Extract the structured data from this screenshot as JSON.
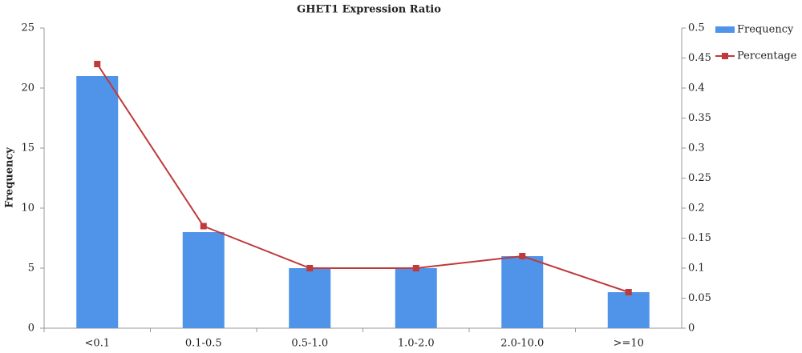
{
  "chart_data": {
    "type": "bar",
    "title": "GHET1 Expression Ratio",
    "y_label": "Frequency",
    "categories": [
      "<0.1",
      "0.1-0.5",
      "0.5-1.0",
      "1.0-2.0",
      "2.0-10.0",
      ">=10"
    ],
    "series": [
      {
        "name": "Frequency",
        "color": "#4f94e8",
        "values": [
          21,
          8,
          5,
          5,
          6,
          3
        ]
      },
      {
        "name": "Percentage",
        "color": "#c0393b",
        "type": "line",
        "axis": "y2",
        "values": [
          0.44,
          0.17,
          0.1,
          0.1,
          0.12,
          0.06
        ]
      }
    ],
    "ylim": [
      0,
      25
    ],
    "yticks": [
      0,
      5,
      10,
      15,
      20,
      25
    ],
    "y2lim": [
      0,
      0.5
    ],
    "y2ticks": [
      0,
      0.05,
      0.1,
      0.15,
      0.2,
      0.25,
      0.3,
      0.35,
      0.4,
      0.45,
      0.5
    ],
    "grid": false,
    "legend": "top-right"
  }
}
